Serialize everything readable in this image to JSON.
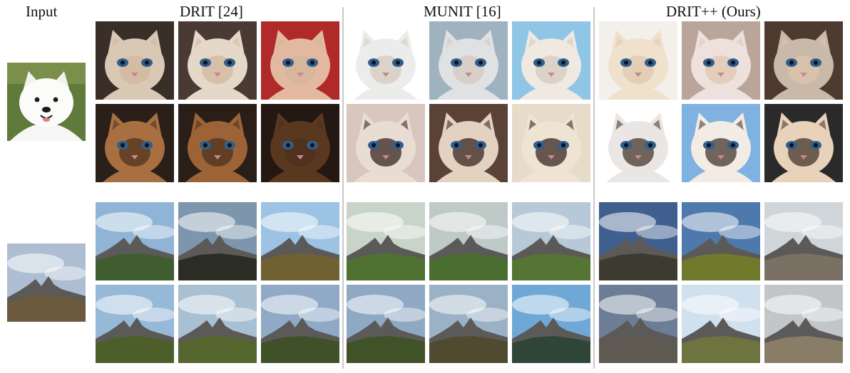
{
  "headers": {
    "input": "Input",
    "drit": "DRIT [24]",
    "munit": "MUNIT [16]",
    "dritpp": "DRIT++ (Ours)"
  },
  "inputs": [
    {
      "subject": "samoyed-dog"
    },
    {
      "subject": "mountain-landscape"
    }
  ],
  "groups": [
    {
      "method": "DRIT",
      "rows": [
        {
          "subject": "cat",
          "fur": [
            "#d9c8b4",
            "#e4d8c8",
            "#e2b9a0"
          ],
          "bg": [
            "#3a2e29",
            "#4a3a34",
            "#b02a2a"
          ],
          "mask": "#d1b79c"
        },
        {
          "subject": "cat",
          "fur": [
            "#a87040",
            "#9c6436",
            "#5a3820"
          ],
          "bg": [
            "#2b2019",
            "#2a1f18",
            "#231812"
          ],
          "mask": "#4a2f1c"
        },
        {
          "subject": "landscape",
          "sky": [
            "#8fb4d6",
            "#7e96ad",
            "#9cc3e3"
          ],
          "land": [
            "#3f5d2e",
            "#2b2c24",
            "#6f6132"
          ]
        },
        {
          "subject": "landscape",
          "sky": [
            "#97b9d8",
            "#a9bfd2",
            "#8fa9c6"
          ],
          "land": [
            "#4c5f2b",
            "#54662d",
            "#40512a"
          ]
        }
      ]
    },
    {
      "method": "MUNIT",
      "rows": [
        {
          "subject": "cat",
          "fur": [
            "#ececea",
            "#dfe1e3",
            "#efe9e1"
          ],
          "bg": [
            "#ffffff",
            "#9fb2bf",
            "#8fc6e6"
          ],
          "mask": "#d4c8bc"
        },
        {
          "subject": "cat",
          "fur": [
            "#e9ddd3",
            "#e3d2c0",
            "#efe4d4"
          ],
          "bg": [
            "#d9c7bf",
            "#5a4236",
            "#e7dcc9"
          ],
          "mask": "#2c1a14"
        },
        {
          "subject": "landscape",
          "sky": [
            "#c9d4c9",
            "#bfc9c8",
            "#b7c9d9"
          ],
          "land": [
            "#4f7232",
            "#4a6e30",
            "#557534"
          ]
        },
        {
          "subject": "landscape",
          "sky": [
            "#8fa8c3",
            "#9ab1c6",
            "#6fa8d6"
          ],
          "land": [
            "#3f5228",
            "#4f4a30",
            "#2f4638"
          ]
        }
      ]
    },
    {
      "method": "DRIT++",
      "rows": [
        {
          "subject": "cat",
          "fur": [
            "#efe1cc",
            "#eee0dc",
            "#c9b9a9"
          ],
          "bg": [
            "#f3f0ec",
            "#b9a59a",
            "#4c3b2e"
          ],
          "mask": "#e0c6ad"
        },
        {
          "subject": "cat",
          "fur": [
            "#e9e6e3",
            "#f2ece5",
            "#e8d2ba"
          ],
          "bg": [
            "#ffffff",
            "#7fb2e1",
            "#2a2a2a"
          ],
          "mask": "#3a2b22"
        },
        {
          "subject": "landscape",
          "sky": [
            "#3f5f8f",
            "#4e79ad",
            "#cfd5d9"
          ],
          "land": [
            "#3d3a30",
            "#6f7a2c",
            "#7a7064"
          ]
        },
        {
          "subject": "landscape",
          "sky": [
            "#6c7d96",
            "#cfe0ee",
            "#c2c6c9"
          ],
          "land": [
            "#5e5a52",
            "#6e7440",
            "#8a7d68"
          ]
        }
      ]
    }
  ]
}
